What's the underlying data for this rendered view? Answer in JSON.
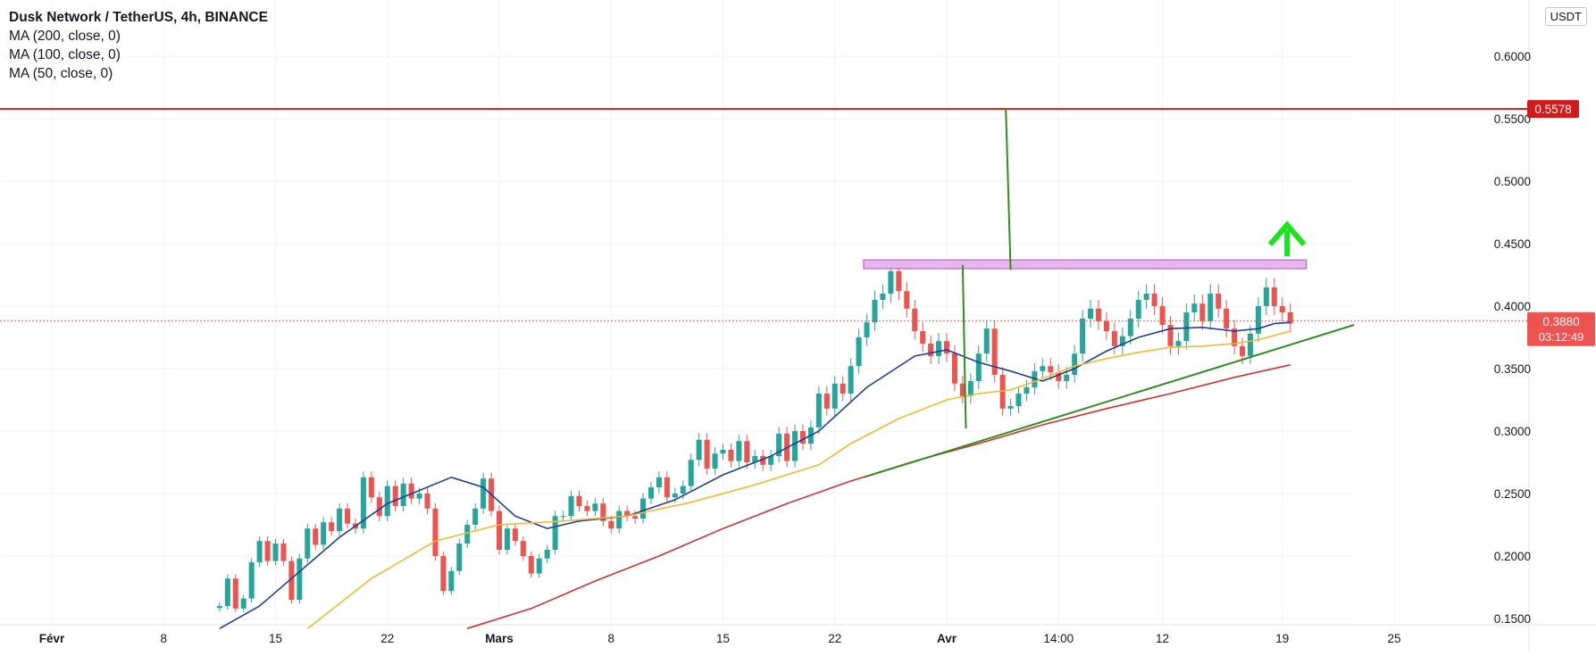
{
  "legend": {
    "title": "Dusk Network / TetherUS, 4h, BINANCE",
    "indicators": [
      "MA (200, close, 0)",
      "MA (100, close, 0)",
      "MA (50, close, 0)"
    ]
  },
  "currency": "USDT",
  "colors": {
    "bull": "#26a69a",
    "bear": "#ef5350",
    "ma50": "#1e3f99",
    "ma100": "#f5b82e",
    "ma200": "#d32f2f",
    "trendline": "#2f8f1e",
    "resistance": "#d11a1a",
    "zone_fill": "#e7b7ee",
    "zone_stroke": "#b44cc4",
    "arrow": "#19e619",
    "price_label": "#ef5350",
    "grid": "#f0f3fa",
    "axis_text": "#131722"
  },
  "chart_data": {
    "type": "candlestick",
    "title": "Dusk Network / TetherUS, 4h, BINANCE",
    "yaxis": {
      "ticks": [
        "0.1500",
        "0.2000",
        "0.2500",
        "0.3000",
        "0.3500",
        "0.4000",
        "0.4500",
        "0.5000",
        "0.5500",
        "0.6000"
      ],
      "range": [
        0.145,
        0.645
      ]
    },
    "xaxis": {
      "ticks": [
        "Févr",
        "8",
        "15",
        "22",
        "Mars",
        "8",
        "15",
        "22",
        "Avr",
        "14:00",
        "12",
        "19",
        "25"
      ],
      "range_days": [
        0,
        84
      ]
    },
    "current_price": {
      "value": "0.3880",
      "countdown": "03:12:49"
    },
    "horizontal_line": {
      "value": "0.5578"
    },
    "close_path": [
      [
        10.5,
        0.16
      ],
      [
        11.0,
        0.182
      ],
      [
        11.5,
        0.158
      ],
      [
        12.0,
        0.166
      ],
      [
        12.5,
        0.195
      ],
      [
        13.0,
        0.212
      ],
      [
        13.5,
        0.196
      ],
      [
        14.0,
        0.21
      ],
      [
        14.5,
        0.196
      ],
      [
        15.0,
        0.165
      ],
      [
        15.5,
        0.198
      ],
      [
        16.0,
        0.222
      ],
      [
        16.5,
        0.209
      ],
      [
        17.0,
        0.227
      ],
      [
        17.5,
        0.22
      ],
      [
        18.0,
        0.238
      ],
      [
        18.5,
        0.226
      ],
      [
        19.0,
        0.222
      ],
      [
        19.5,
        0.263
      ],
      [
        20.0,
        0.247
      ],
      [
        20.5,
        0.232
      ],
      [
        21.0,
        0.256
      ],
      [
        21.5,
        0.24
      ],
      [
        22.0,
        0.258
      ],
      [
        22.5,
        0.246
      ],
      [
        23.0,
        0.25
      ],
      [
        23.5,
        0.238
      ],
      [
        24.0,
        0.2
      ],
      [
        24.5,
        0.172
      ],
      [
        25.0,
        0.188
      ],
      [
        25.5,
        0.21
      ],
      [
        26.0,
        0.225
      ],
      [
        26.5,
        0.238
      ],
      [
        27.0,
        0.262
      ],
      [
        27.5,
        0.236
      ],
      [
        28.0,
        0.205
      ],
      [
        28.5,
        0.222
      ],
      [
        29.0,
        0.212
      ],
      [
        29.5,
        0.2
      ],
      [
        30.0,
        0.186
      ],
      [
        30.5,
        0.198
      ],
      [
        31.0,
        0.205
      ],
      [
        31.5,
        0.232
      ],
      [
        32.0,
        0.232
      ],
      [
        32.5,
        0.248
      ],
      [
        33.0,
        0.24
      ],
      [
        33.5,
        0.236
      ],
      [
        34.0,
        0.242
      ],
      [
        34.5,
        0.228
      ],
      [
        35.0,
        0.222
      ],
      [
        35.5,
        0.236
      ],
      [
        36.0,
        0.232
      ],
      [
        36.5,
        0.23
      ],
      [
        37.0,
        0.246
      ],
      [
        37.5,
        0.255
      ],
      [
        38.0,
        0.263
      ],
      [
        38.5,
        0.247
      ],
      [
        39.0,
        0.25
      ],
      [
        39.5,
        0.256
      ],
      [
        40.0,
        0.277
      ],
      [
        40.5,
        0.293
      ],
      [
        41.0,
        0.27
      ],
      [
        41.5,
        0.282
      ],
      [
        42.0,
        0.285
      ],
      [
        42.5,
        0.276
      ],
      [
        43.0,
        0.292
      ],
      [
        43.5,
        0.275
      ],
      [
        44.0,
        0.28
      ],
      [
        44.5,
        0.273
      ],
      [
        45.0,
        0.28
      ],
      [
        45.5,
        0.298
      ],
      [
        46.0,
        0.276
      ],
      [
        46.5,
        0.3
      ],
      [
        47.0,
        0.29
      ],
      [
        47.5,
        0.303
      ],
      [
        48.0,
        0.33
      ],
      [
        48.5,
        0.318
      ],
      [
        49.0,
        0.338
      ],
      [
        49.5,
        0.33
      ],
      [
        50.0,
        0.352
      ],
      [
        50.5,
        0.375
      ],
      [
        51.0,
        0.387
      ],
      [
        51.5,
        0.405
      ],
      [
        52.0,
        0.41
      ],
      [
        52.5,
        0.428
      ],
      [
        53.0,
        0.412
      ],
      [
        53.5,
        0.398
      ],
      [
        54.0,
        0.38
      ],
      [
        54.5,
        0.37
      ],
      [
        55.0,
        0.36
      ],
      [
        55.5,
        0.372
      ],
      [
        56.0,
        0.362
      ],
      [
        56.5,
        0.338
      ],
      [
        57.0,
        0.328
      ],
      [
        57.5,
        0.34
      ],
      [
        58.0,
        0.362
      ],
      [
        58.5,
        0.382
      ],
      [
        59.0,
        0.345
      ],
      [
        59.5,
        0.318
      ],
      [
        60.0,
        0.32
      ],
      [
        60.5,
        0.33
      ],
      [
        61.0,
        0.335
      ],
      [
        61.5,
        0.348
      ],
      [
        62.0,
        0.352
      ],
      [
        62.5,
        0.347
      ],
      [
        63.0,
        0.34
      ],
      [
        63.5,
        0.345
      ],
      [
        64.0,
        0.362
      ],
      [
        64.5,
        0.39
      ],
      [
        65.0,
        0.398
      ],
      [
        65.5,
        0.388
      ],
      [
        66.0,
        0.38
      ],
      [
        66.5,
        0.368
      ],
      [
        67.0,
        0.376
      ],
      [
        67.5,
        0.39
      ],
      [
        68.0,
        0.405
      ],
      [
        68.5,
        0.41
      ],
      [
        69.0,
        0.4
      ],
      [
        69.5,
        0.385
      ],
      [
        70.0,
        0.368
      ],
      [
        70.5,
        0.372
      ],
      [
        71.0,
        0.395
      ],
      [
        71.5,
        0.402
      ],
      [
        72.0,
        0.388
      ],
      [
        72.5,
        0.41
      ],
      [
        73.0,
        0.398
      ],
      [
        73.5,
        0.382
      ],
      [
        74.0,
        0.368
      ],
      [
        74.5,
        0.36
      ],
      [
        75.0,
        0.378
      ],
      [
        75.5,
        0.4
      ],
      [
        76.0,
        0.415
      ],
      [
        76.5,
        0.4
      ],
      [
        77.0,
        0.395
      ],
      [
        77.5,
        0.386
      ]
    ],
    "series": [
      {
        "name": "MA (50, close, 0)",
        "points": [
          [
            10.5,
            0.142
          ],
          [
            13,
            0.16
          ],
          [
            15,
            0.182
          ],
          [
            18,
            0.215
          ],
          [
            21,
            0.242
          ],
          [
            25,
            0.263
          ],
          [
            27,
            0.255
          ],
          [
            29,
            0.232
          ],
          [
            31,
            0.222
          ],
          [
            33,
            0.228
          ],
          [
            36,
            0.232
          ],
          [
            39,
            0.245
          ],
          [
            42,
            0.265
          ],
          [
            45,
            0.28
          ],
          [
            48,
            0.3
          ],
          [
            51,
            0.335
          ],
          [
            54,
            0.36
          ],
          [
            56,
            0.365
          ],
          [
            58,
            0.355
          ],
          [
            60,
            0.348
          ],
          [
            62,
            0.34
          ],
          [
            64,
            0.35
          ],
          [
            66,
            0.364
          ],
          [
            68,
            0.375
          ],
          [
            70,
            0.382
          ],
          [
            72,
            0.383
          ],
          [
            74,
            0.38
          ],
          [
            75.5,
            0.382
          ],
          [
            76.5,
            0.386
          ],
          [
            77.5,
            0.387
          ]
        ]
      },
      {
        "name": "MA (100, close, 0)",
        "points": [
          [
            16,
            0.142
          ],
          [
            20,
            0.182
          ],
          [
            24,
            0.212
          ],
          [
            28,
            0.225
          ],
          [
            32,
            0.228
          ],
          [
            36,
            0.232
          ],
          [
            40,
            0.243
          ],
          [
            44,
            0.257
          ],
          [
            48,
            0.273
          ],
          [
            50,
            0.29
          ],
          [
            53,
            0.31
          ],
          [
            56,
            0.325
          ],
          [
            58,
            0.33
          ],
          [
            60,
            0.333
          ],
          [
            62,
            0.342
          ],
          [
            64,
            0.352
          ],
          [
            66,
            0.358
          ],
          [
            68,
            0.363
          ],
          [
            70,
            0.367
          ],
          [
            72,
            0.368
          ],
          [
            74,
            0.37
          ],
          [
            75.5,
            0.373
          ],
          [
            77.5,
            0.38
          ]
        ]
      },
      {
        "name": "MA (200, close, 0)",
        "points": [
          [
            26,
            0.142
          ],
          [
            30,
            0.158
          ],
          [
            34,
            0.18
          ],
          [
            38,
            0.2
          ],
          [
            42,
            0.222
          ],
          [
            46,
            0.242
          ],
          [
            50,
            0.26
          ],
          [
            54,
            0.276
          ],
          [
            58,
            0.29
          ],
          [
            62,
            0.305
          ],
          [
            66,
            0.318
          ],
          [
            70,
            0.33
          ],
          [
            74,
            0.343
          ],
          [
            77.5,
            0.353
          ]
        ]
      }
    ],
    "trendlines": [
      {
        "from": [
          50.8,
          0.263
        ],
        "to": [
          81.5,
          0.385
        ]
      },
      {
        "from": [
          57,
          0.433
        ],
        "to": [
          57.2,
          0.302
        ]
      },
      {
        "from": [
          59.7,
          0.558
        ],
        "to": [
          60,
          0.429
        ]
      }
    ],
    "rectangle": {
      "x": [
        50.8,
        78.5
      ],
      "y": [
        0.43,
        0.437
      ]
    },
    "arrow": {
      "x": 77.3,
      "y_from": 0.44,
      "y_to": 0.465
    }
  }
}
